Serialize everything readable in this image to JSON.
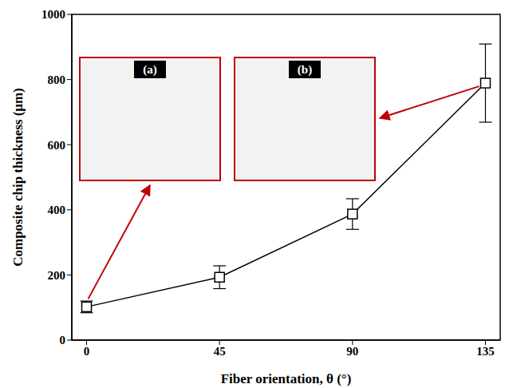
{
  "chart_data": {
    "type": "line",
    "x_label": "Fiber orientation, θ (°)",
    "y_label": "Composite chip thickness (μm)",
    "x": [
      0,
      45,
      90,
      135
    ],
    "values": [
      102,
      193,
      387,
      789
    ],
    "errors": [
      18,
      35,
      47,
      120
    ],
    "color": "#000000",
    "marker": "square",
    "line_style": "solid",
    "xlim": [
      -5,
      140
    ],
    "xticks": [
      0,
      45,
      90,
      135
    ],
    "ylim": [
      0,
      1000
    ],
    "yticks": [
      0,
      200,
      400,
      600,
      800,
      1000
    ],
    "grid": false,
    "annotations": [
      "(a)",
      "(b)"
    ]
  }
}
